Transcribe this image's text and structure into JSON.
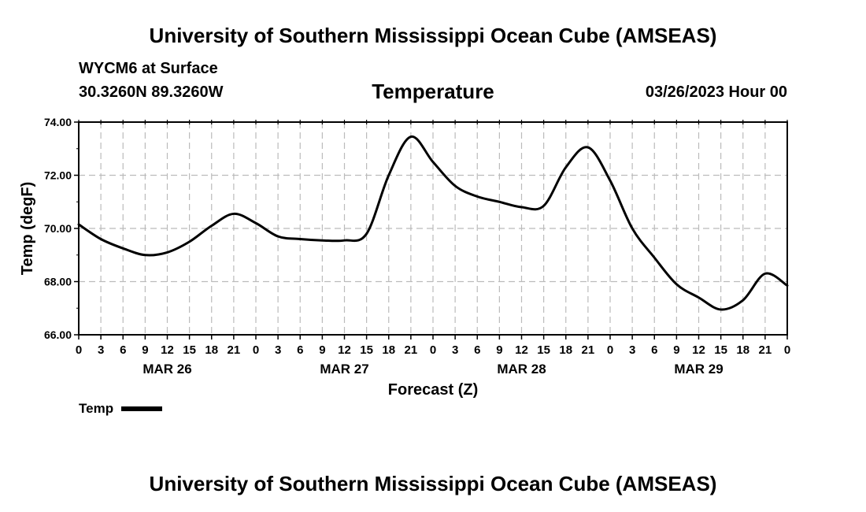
{
  "header": {
    "title": "University of Southern Mississippi Ocean Cube (AMSEAS)",
    "station": "WYCM6 at Surface",
    "coords": "30.3260N  89.3260W",
    "datetime": "03/26/2023 Hour 00"
  },
  "footer": {
    "title": "University of Southern Mississippi Ocean Cube (AMSEAS)"
  },
  "colors": {
    "line": "#000000",
    "grid": "#bbbbbb",
    "background": "#ffffff"
  },
  "chart_data": {
    "type": "line",
    "title": "Temperature",
    "xlabel": "Forecast (Z)",
    "ylabel": "Temp (degF)",
    "ylim": [
      66,
      74
    ],
    "yticks": [
      "66.00",
      "68.00",
      "70.00",
      "72.00",
      "74.00"
    ],
    "xlim": [
      0,
      96
    ],
    "x_step_hours": 3,
    "xtick_labels": [
      "0",
      "3",
      "6",
      "9",
      "12",
      "15",
      "18",
      "21",
      "0",
      "3",
      "6",
      "9",
      "12",
      "15",
      "18",
      "21",
      "0",
      "3",
      "6",
      "9",
      "12",
      "15",
      "18",
      "21",
      "0",
      "3",
      "6",
      "9",
      "12",
      "15",
      "18",
      "21",
      "0"
    ],
    "day_labels": [
      {
        "label": "MAR 26",
        "hour": 12
      },
      {
        "label": "MAR 27",
        "hour": 36
      },
      {
        "label": "MAR 28",
        "hour": 60
      },
      {
        "label": "MAR 29",
        "hour": 84
      }
    ],
    "grid": true,
    "legend": {
      "position": "bottom-left",
      "label": "Temp"
    },
    "series": [
      {
        "name": "Temp",
        "x": [
          0,
          3,
          6,
          9,
          12,
          15,
          18,
          21,
          24,
          27,
          30,
          33,
          36,
          39,
          42,
          45,
          48,
          51,
          54,
          57,
          60,
          63,
          66,
          69,
          72,
          75,
          78,
          81,
          84,
          87,
          90,
          93,
          96
        ],
        "values": [
          70.15,
          69.6,
          69.25,
          69.0,
          69.1,
          69.5,
          70.1,
          70.55,
          70.2,
          69.7,
          69.6,
          69.55,
          69.55,
          69.8,
          72.0,
          73.45,
          72.5,
          71.6,
          71.2,
          71.0,
          70.8,
          70.85,
          72.3,
          73.05,
          71.8,
          70.0,
          68.9,
          67.9,
          67.4,
          66.95,
          67.3,
          68.3,
          67.85
        ]
      }
    ]
  }
}
